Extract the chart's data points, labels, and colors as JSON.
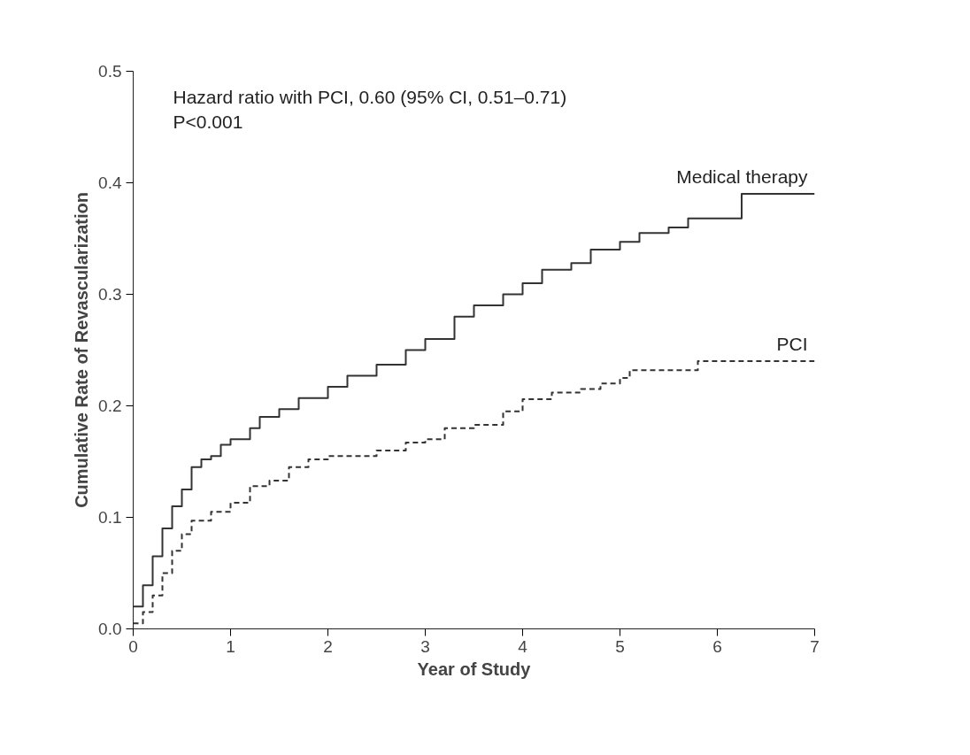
{
  "chart_data": {
    "type": "step",
    "xlabel": "Year of Study",
    "ylabel": "Cumulative Rate of Revascularization",
    "annotations": [
      "Hazard ratio with PCI, 0.60 (95% CI, 0.51–0.71)",
      "P<0.001"
    ],
    "xlim": [
      0,
      7
    ],
    "ylim": [
      0,
      0.5
    ],
    "xticks": [
      0,
      1,
      2,
      3,
      4,
      5,
      6,
      7
    ],
    "yticks": [
      {
        "value": 0,
        "label": "0.0"
      },
      0.1,
      0.2,
      0.3,
      0.4,
      0.5
    ],
    "grid": false,
    "series": [
      {
        "name": "Medical therapy",
        "color": "#333333",
        "line_style": "solid",
        "x": [
          0,
          0.1,
          0.2,
          0.3,
          0.4,
          0.5,
          0.6,
          0.7,
          0.8,
          0.9,
          1.0,
          1.2,
          1.3,
          1.5,
          1.7,
          2.0,
          2.2,
          2.5,
          2.8,
          3.0,
          3.3,
          3.5,
          3.8,
          4.0,
          4.2,
          4.5,
          4.7,
          5.0,
          5.2,
          5.5,
          5.7,
          6.25,
          7
        ],
        "values": [
          0.02,
          0.039,
          0.065,
          0.09,
          0.11,
          0.125,
          0.145,
          0.152,
          0.155,
          0.165,
          0.17,
          0.18,
          0.19,
          0.197,
          0.207,
          0.217,
          0.227,
          0.237,
          0.25,
          0.26,
          0.28,
          0.29,
          0.3,
          0.31,
          0.322,
          0.328,
          0.34,
          0.347,
          0.355,
          0.36,
          0.368,
          0.39,
          0.39
        ]
      },
      {
        "name": "PCI",
        "color": "#333333",
        "line_style": "dashed",
        "x": [
          0,
          0.1,
          0.2,
          0.3,
          0.4,
          0.5,
          0.6,
          0.8,
          1.0,
          1.2,
          1.4,
          1.6,
          1.8,
          2.0,
          2.5,
          2.8,
          3.0,
          3.2,
          3.5,
          3.8,
          4.0,
          4.3,
          4.6,
          4.8,
          5.0,
          5.1,
          5.6,
          5.8,
          7
        ],
        "values": [
          0.005,
          0.015,
          0.03,
          0.05,
          0.07,
          0.085,
          0.097,
          0.105,
          0.113,
          0.128,
          0.133,
          0.145,
          0.152,
          0.155,
          0.16,
          0.167,
          0.17,
          0.18,
          0.183,
          0.195,
          0.206,
          0.212,
          0.215,
          0.22,
          0.225,
          0.232,
          0.232,
          0.24,
          0.24
        ]
      }
    ]
  }
}
